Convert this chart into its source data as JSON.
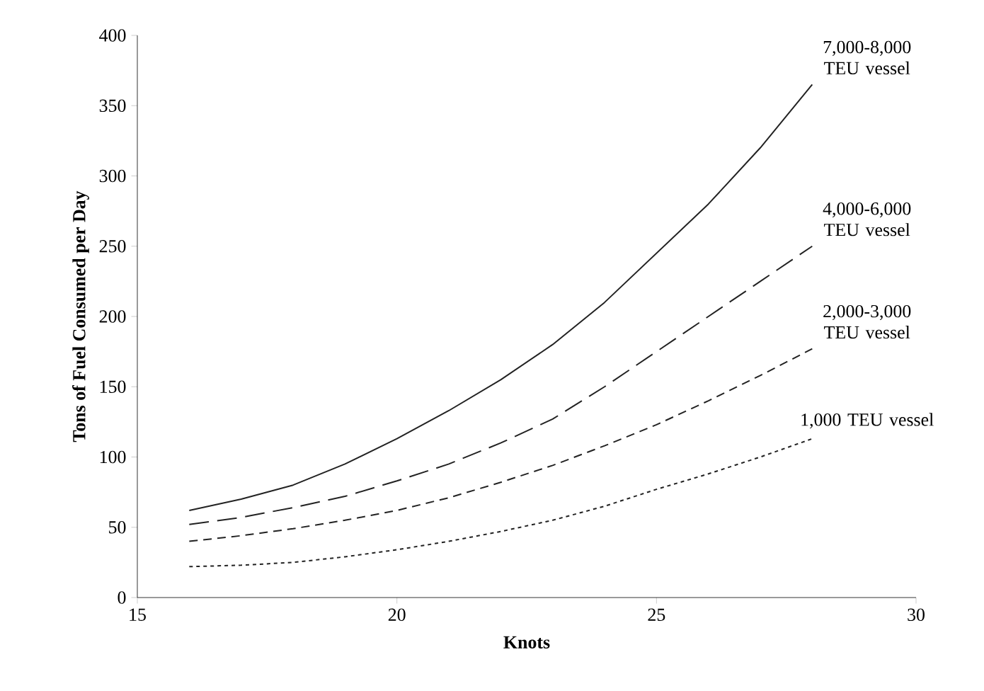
{
  "chart_data": {
    "type": "line",
    "xlabel": "Knots",
    "ylabel": "Tons of Fuel Consumed per Day",
    "x": [
      16,
      17,
      18,
      19,
      20,
      21,
      22,
      23,
      24,
      25,
      26,
      27,
      28
    ],
    "series": [
      {
        "name": "7,000-8,000 TEU vessel",
        "color": "#222222",
        "line_style": "solid",
        "values": [
          62,
          70,
          80,
          95,
          113,
          133,
          155,
          180,
          210,
          245,
          280,
          320,
          365
        ]
      },
      {
        "name": "4,000-6,000 TEU vessel",
        "color": "#222222",
        "line_style": "dashed",
        "values": [
          52,
          57,
          64,
          72,
          83,
          95,
          110,
          127,
          150,
          175,
          200,
          225,
          250
        ]
      },
      {
        "name": "2,000-3,000 TEU vessel",
        "color": "#222222",
        "line_style": "dashed",
        "values": [
          40,
          44,
          49,
          55,
          62,
          71,
          82,
          94,
          108,
          123,
          140,
          158,
          177
        ]
      },
      {
        "name": "1,000 TEU vessel",
        "color": "#222222",
        "line_style": "dotted",
        "values": [
          22,
          23,
          25,
          29,
          34,
          40,
          47,
          55,
          65,
          77,
          88,
          100,
          113
        ]
      }
    ],
    "xlim": [
      15,
      30
    ],
    "ylim": [
      0,
      400
    ],
    "xticks": [
      15,
      20,
      25,
      30
    ],
    "yticks": [
      0,
      50,
      100,
      150,
      200,
      250,
      300,
      350,
      400
    ],
    "grid": false,
    "legend": false,
    "marker": "none"
  }
}
